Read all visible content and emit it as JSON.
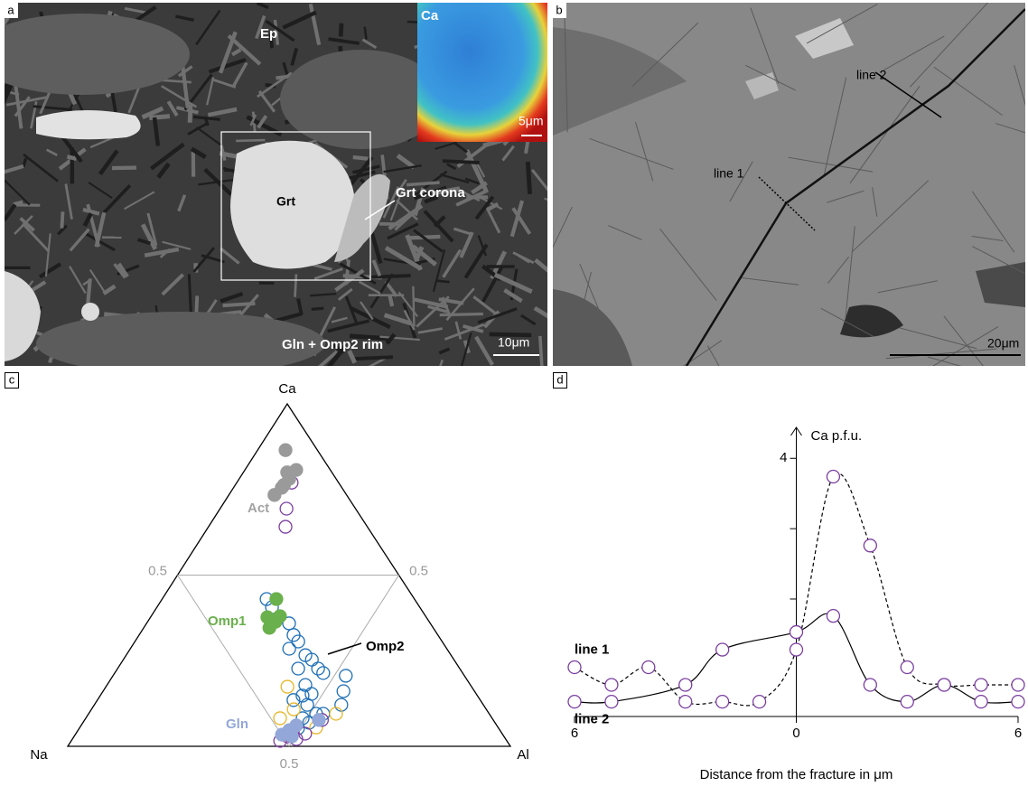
{
  "panels": {
    "a": {
      "label": "a",
      "ep": "Ep",
      "inset_label": "Ca",
      "inset_scale": "5μm",
      "grt": "Grt",
      "corona": "Grt corona",
      "rim": "Gln + Omp2 rim",
      "scale": "10μm"
    },
    "b": {
      "label": "b",
      "line2": "line 2",
      "line1": "line 1",
      "scale": "20μm"
    }
  },
  "chart_data": [
    {
      "type": "ternary",
      "panel_label": "c",
      "vertices": {
        "top": "Ca",
        "left": "Na",
        "right": "Al"
      },
      "ca_ticks": [
        0.5
      ],
      "al_ticks": [
        0.5
      ],
      "na_ticks": [
        0.5
      ],
      "annotations": [
        {
          "text": "Act",
          "color": "#a3a3a3"
        },
        {
          "text": "Omp1",
          "color": "#6ab04c"
        },
        {
          "text": "Omp2",
          "color": "#000000"
        },
        {
          "text": "Gln",
          "color": "#93a8d8"
        }
      ],
      "series": [
        {
          "color": "#1f6fb5",
          "filled": false,
          "ca": [
            0.43,
            0.406,
            0.359,
            0.325,
            0.285,
            0.306,
            0.266,
            0.253,
            0.227,
            0.214,
            0.227,
            0.179,
            0.153,
            0.135,
            0.121,
            0.095,
            0.082,
            0.069,
            0.206,
            0.161,
            0.121,
            0.095,
            0.053,
            0.037,
            0.148
          ],
          "al": [
            0.236,
            0.26,
            0.322,
            0.349,
            0.359,
            0.369,
            0.405,
            0.426,
            0.453,
            0.471,
            0.408,
            0.448,
            0.475,
            0.443,
            0.481,
            0.514,
            0.49,
            0.511,
            0.526,
            0.543,
            0.558,
            0.53,
            0.494,
            0.482,
            0.457
          ]
        },
        {
          "color": "#e8b62a",
          "filled": false,
          "ca": [
            0.174,
            0.108,
            0.082,
            0.095,
            0.055
          ],
          "al": [
            0.41,
            0.457,
            0.439,
            0.559,
            0.534
          ]
        },
        {
          "color": "#7b3fa0",
          "filled": false,
          "ca": [
            0.77,
            0.694,
            0.641,
            0.029,
            0.021,
            0.037,
            0.077,
            0.016
          ],
          "al": [
            0.124,
            0.15,
            0.174,
            0.482,
            0.506,
            0.518,
            0.536,
            0.472
          ]
        },
        {
          "color": "#9a9a9a",
          "filled": true,
          "ca": [
            0.865,
            0.8,
            0.807,
            0.763,
            0.781,
            0.734,
            0.755
          ],
          "al": [
            0.063,
            0.099,
            0.116,
            0.11,
            0.113,
            0.103,
            0.109
          ]
        },
        {
          "color": "#6ab04c",
          "filled": true,
          "ca": [
            0.43,
            0.377,
            0.359,
            0.364,
            0.346,
            0.38
          ],
          "al": [
            0.258,
            0.264,
            0.281,
            0.289,
            0.284,
            0.291
          ]
        },
        {
          "color": "#93a8d8",
          "filled": true,
          "ca": [
            0.047,
            0.061,
            0.034,
            0.077,
            0.029
          ],
          "al": [
            0.477,
            0.486,
            0.467,
            0.529,
            0.492
          ]
        }
      ]
    },
    {
      "type": "line",
      "panel_label": "d",
      "y_label": "Ca p.f.u.",
      "x_label": "Distance from the fracture in μm",
      "xlim": [
        -6,
        6
      ],
      "xticks": [
        {
          "value": -6,
          "label": "6"
        },
        0,
        6
      ],
      "ylim": [
        0.33,
        4.44
      ],
      "yticks": [
        {
          "value": 2,
          "label": null
        },
        {
          "value": 3,
          "label": null
        },
        4
      ],
      "series": [
        {
          "name": "line 1",
          "color": "#000000",
          "marker_color": "#7b3fa0",
          "dashed": true,
          "x": [
            -6,
            -5,
            -4,
            -3,
            -2,
            -1,
            0,
            1,
            2,
            3,
            4,
            5,
            6
          ],
          "values": [
            1.03,
            0.78,
            1.03,
            0.54,
            0.54,
            0.54,
            1.28,
            3.74,
            2.76,
            1.03,
            0.78,
            0.78,
            0.78
          ]
        },
        {
          "name": "line 2",
          "color": "#000000",
          "marker_color": "#7b3fa0",
          "dashed": false,
          "x": [
            -6,
            -5,
            -3,
            -2,
            0,
            1,
            2,
            3,
            4,
            5,
            6
          ],
          "values": [
            0.54,
            0.54,
            0.78,
            1.28,
            1.53,
            1.76,
            0.78,
            0.54,
            0.78,
            0.54,
            0.54
          ]
        }
      ]
    }
  ]
}
